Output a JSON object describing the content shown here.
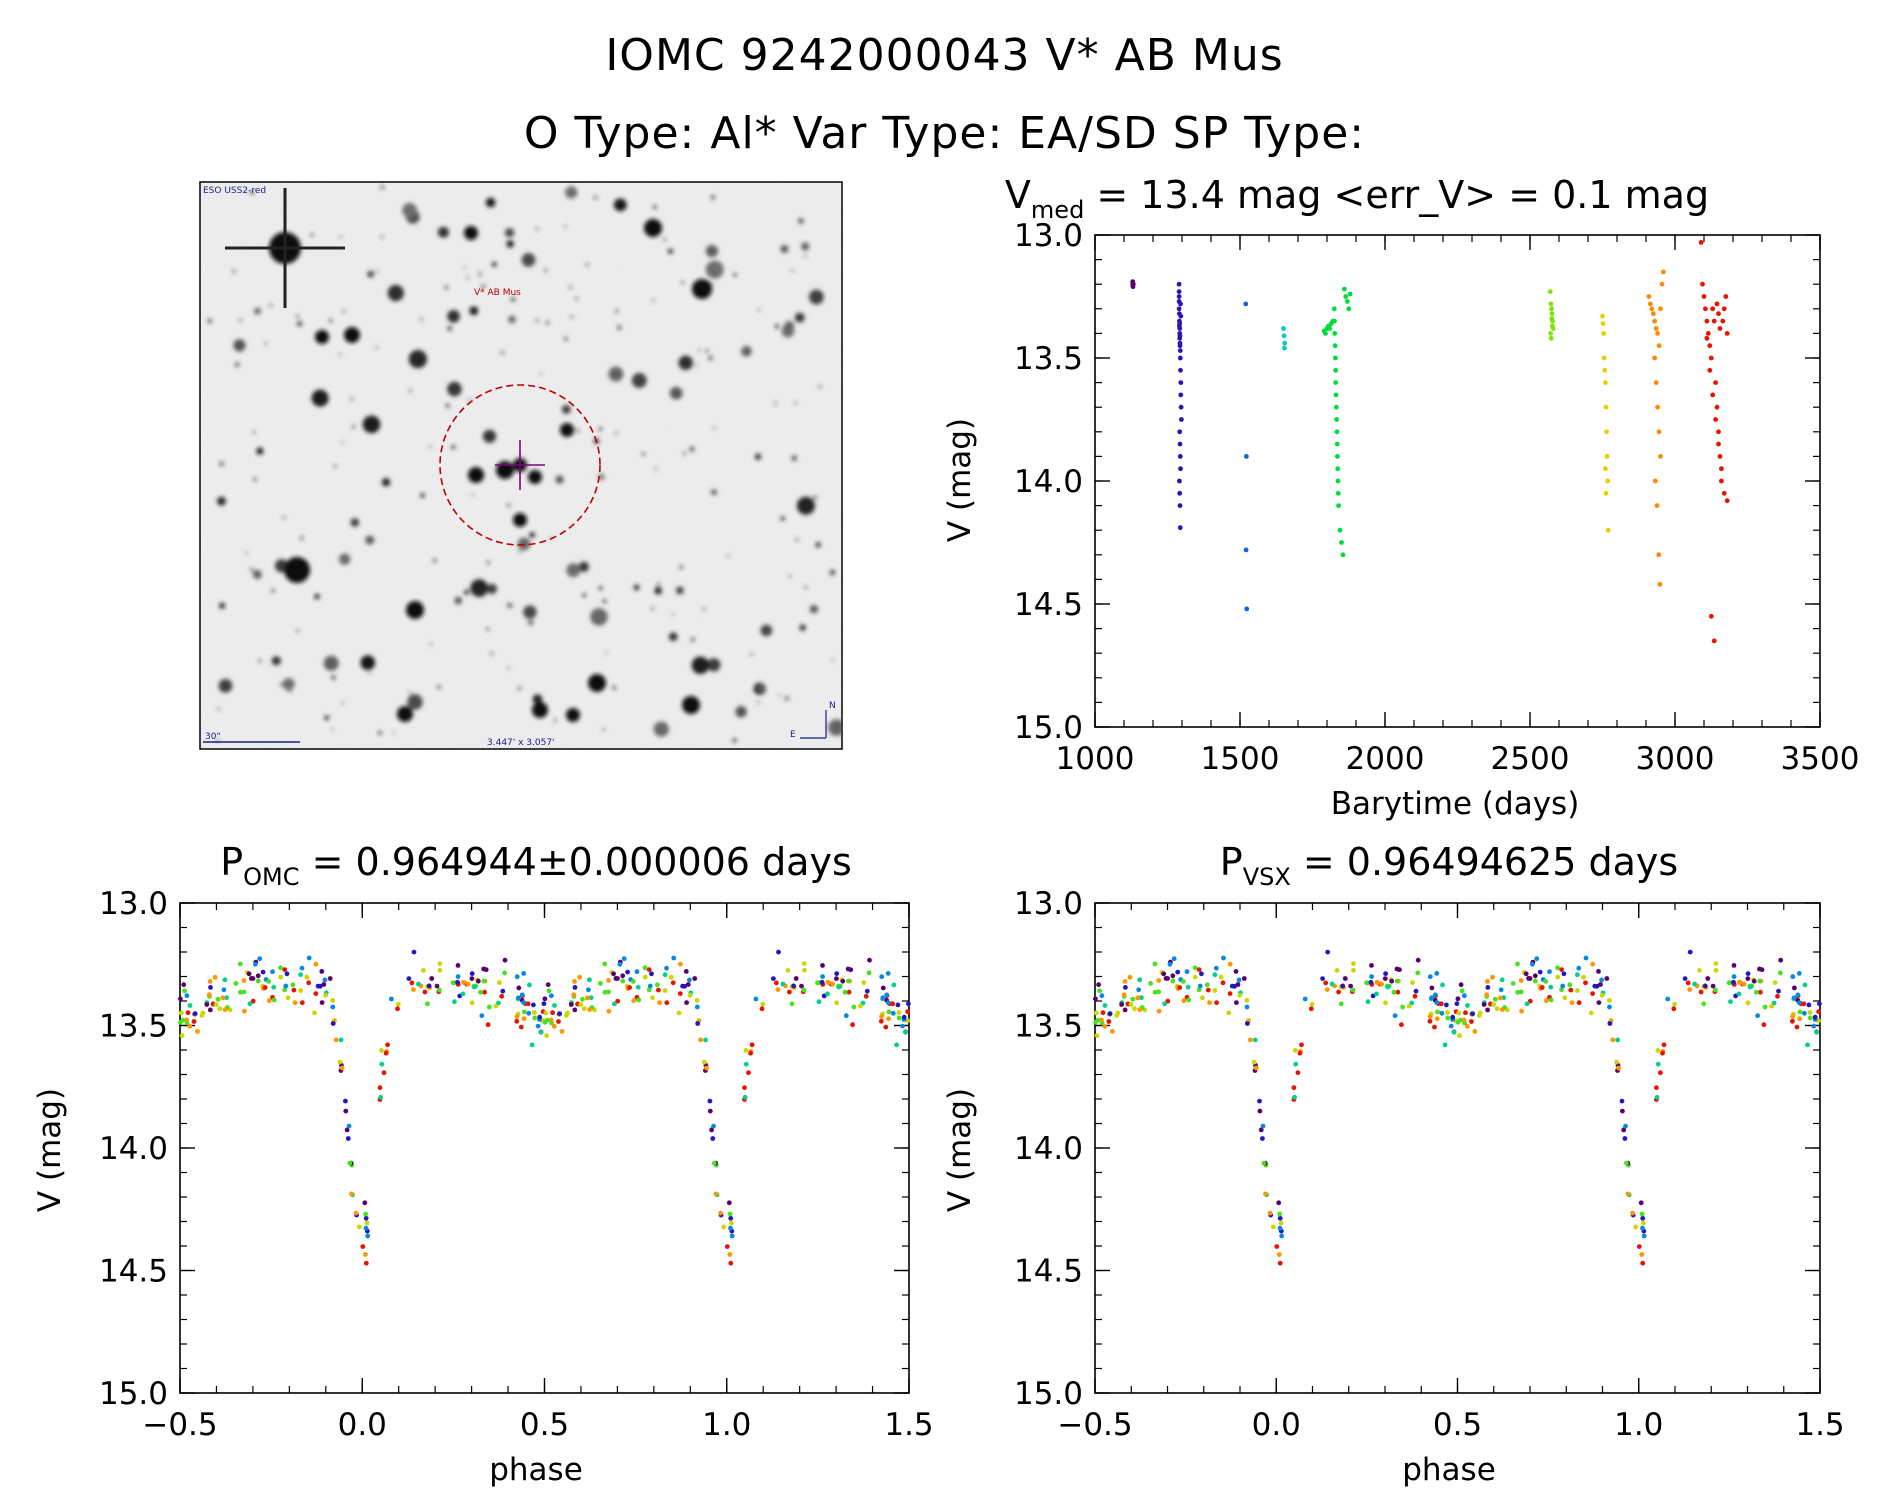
{
  "header": {
    "line1": "IOMC 9242000043   V* AB Mus",
    "line2": "O Type: Al*  Var Type: EA/SD  SP Type:"
  },
  "finder": {
    "survey_label": "ESO USS2-red",
    "target_label": "V* AB Mus",
    "scale_label": "30\"",
    "size_label": "3.447' x 3.057'",
    "north_label": "N",
    "east_label": "E"
  },
  "colors": {
    "finder_circle": "#c00000",
    "crosshair": "#800080",
    "finder_text": "#1a1a8c"
  },
  "chart_data": [
    {
      "id": "lightcurve",
      "type": "scatter",
      "title_main": "V",
      "title_sub": "med",
      "title_rest": " = 13.4 mag <err_V> = 0.1 mag",
      "xlabel": "Barytime (days)",
      "ylabel": "V (mag)",
      "xlim": [
        1000,
        3500
      ],
      "ylim": [
        15.0,
        13.0
      ],
      "y_inverted": true,
      "xticks": [
        1000,
        1500,
        2000,
        2500,
        3000,
        3500
      ],
      "yticks": [
        13.0,
        13.5,
        14.0,
        14.5,
        15.0
      ],
      "color_by": "time (rainbow: purple to red)",
      "series": [
        {
          "x": [
            1130,
            1130,
            1131,
            1132
          ],
          "y": [
            13.19,
            13.2,
            13.21,
            13.2
          ]
        },
        {
          "x": [
            1290,
            1290,
            1290,
            1290,
            1290,
            1291,
            1291,
            1291,
            1292,
            1292,
            1292,
            1293,
            1293,
            1294,
            1294,
            1295,
            1296,
            1296,
            1297,
            1298,
            1292,
            1293,
            1294,
            1295,
            1291,
            1292,
            1293,
            1294,
            1295,
            1296,
            1292,
            1293
          ],
          "y": [
            13.2,
            13.23,
            13.25,
            13.27,
            13.3,
            13.32,
            13.35,
            13.37,
            13.38,
            13.4,
            13.42,
            13.44,
            13.45,
            13.47,
            13.5,
            13.55,
            13.6,
            13.65,
            13.7,
            13.75,
            13.8,
            13.85,
            13.9,
            13.95,
            14.0,
            14.05,
            14.1,
            14.19,
            13.28,
            13.33,
            13.36,
            13.41
          ]
        },
        {
          "x": [
            1520,
            1522,
            1521,
            1523
          ],
          "y": [
            13.28,
            13.9,
            14.28,
            14.52
          ]
        },
        {
          "x": [
            1650,
            1652,
            1654,
            1653
          ],
          "y": [
            13.38,
            13.41,
            13.44,
            13.46
          ]
        },
        {
          "x": [
            1790,
            1795,
            1800,
            1805,
            1810,
            1815,
            1820,
            1825,
            1826,
            1827,
            1828,
            1829,
            1830,
            1830,
            1831,
            1832,
            1833,
            1834,
            1835,
            1836,
            1837,
            1838,
            1839,
            1840,
            1845,
            1850,
            1855,
            1860,
            1865,
            1870,
            1875,
            1880
          ],
          "y": [
            13.39,
            13.4,
            13.38,
            13.37,
            13.38,
            13.36,
            13.35,
            13.3,
            13.35,
            13.4,
            13.45,
            13.5,
            13.55,
            13.6,
            13.65,
            13.7,
            13.75,
            13.8,
            13.85,
            13.9,
            13.95,
            14.0,
            14.05,
            14.1,
            14.2,
            14.25,
            14.3,
            13.22,
            13.25,
            13.27,
            13.3,
            13.24
          ]
        },
        {
          "x": [
            2570,
            2572,
            2574,
            2576,
            2578,
            2580,
            2571,
            2573,
            2575,
            2577
          ],
          "y": [
            13.23,
            13.28,
            13.3,
            13.32,
            13.35,
            13.38,
            13.4,
            13.42,
            13.34,
            13.37
          ]
        },
        {
          "x": [
            2750,
            2752,
            2754,
            2756,
            2758,
            2760,
            2762,
            2764,
            2766,
            2768,
            2770,
            2760,
            2762
          ],
          "y": [
            13.33,
            13.36,
            13.4,
            13.5,
            13.55,
            13.6,
            13.7,
            13.8,
            13.9,
            14.0,
            14.2,
            13.95,
            14.05
          ]
        },
        {
          "x": [
            2910,
            2915,
            2920,
            2925,
            2930,
            2935,
            2940,
            2945,
            2950,
            2955,
            2960,
            2930,
            2935,
            2940,
            2945,
            2950,
            2932,
            2938,
            2944,
            2948
          ],
          "y": [
            13.25,
            13.28,
            13.3,
            13.32,
            13.35,
            13.38,
            13.4,
            13.45,
            13.3,
            13.2,
            13.15,
            13.5,
            13.6,
            13.7,
            13.8,
            13.9,
            14.0,
            14.1,
            14.3,
            14.42
          ]
        },
        {
          "x": [
            3090,
            3095,
            3100,
            3105,
            3110,
            3115,
            3120,
            3125,
            3130,
            3135,
            3140,
            3145,
            3150,
            3155,
            3160,
            3165,
            3170,
            3175,
            3180,
            3110,
            3120,
            3130,
            3140,
            3150,
            3160,
            3170,
            3180,
            3125,
            3135,
            3145,
            3150,
            3155
          ],
          "y": [
            13.03,
            13.2,
            13.25,
            13.3,
            13.35,
            13.4,
            13.45,
            13.5,
            13.3,
            13.35,
            13.6,
            13.7,
            13.8,
            13.9,
            14.0,
            13.35,
            13.3,
            13.25,
            13.4,
            13.42,
            13.55,
            13.65,
            13.75,
            13.85,
            13.95,
            14.05,
            14.08,
            14.55,
            14.65,
            13.28,
            13.32,
            13.38
          ]
        }
      ]
    },
    {
      "id": "phase_omc",
      "type": "scatter",
      "title_main": "P",
      "title_sub": "OMC",
      "title_rest": " = 0.964944±0.000006 days",
      "xlabel": "phase",
      "ylabel": "V (mag)",
      "xlim": [
        -0.5,
        1.5
      ],
      "ylim": [
        15.0,
        13.0
      ],
      "y_inverted": true,
      "xticks": [
        -0.5,
        0.0,
        0.5,
        1.0,
        1.5
      ],
      "yticks": [
        13.0,
        13.5,
        14.0,
        14.5,
        15.0
      ],
      "color_by": "time (rainbow: purple to red)",
      "phase_curve": {
        "base_mag": 13.33,
        "scatter": 0.09,
        "primary_eclipse": {
          "phase": 0.0,
          "depth_mag": 1.05,
          "width": 0.045
        },
        "secondary_eclipse": {
          "phase": 0.5,
          "depth_mag": 0.14,
          "width": 0.05
        }
      }
    },
    {
      "id": "phase_vsx",
      "type": "scatter",
      "title_main": "P",
      "title_sub": "VSX",
      "title_rest": " = 0.96494625 days",
      "xlabel": "phase",
      "ylabel": "V (mag)",
      "xlim": [
        -0.5,
        1.5
      ],
      "ylim": [
        15.0,
        13.0
      ],
      "y_inverted": true,
      "xticks": [
        -0.5,
        0.0,
        0.5,
        1.0,
        1.5
      ],
      "yticks": [
        13.0,
        13.5,
        14.0,
        14.5,
        15.0
      ],
      "color_by": "time (rainbow: purple to red)",
      "phase_curve": {
        "base_mag": 13.33,
        "scatter": 0.09,
        "primary_eclipse": {
          "phase": 0.0,
          "depth_mag": 1.05,
          "width": 0.045
        },
        "secondary_eclipse": {
          "phase": 0.5,
          "depth_mag": 0.14,
          "width": 0.05
        }
      }
    }
  ]
}
